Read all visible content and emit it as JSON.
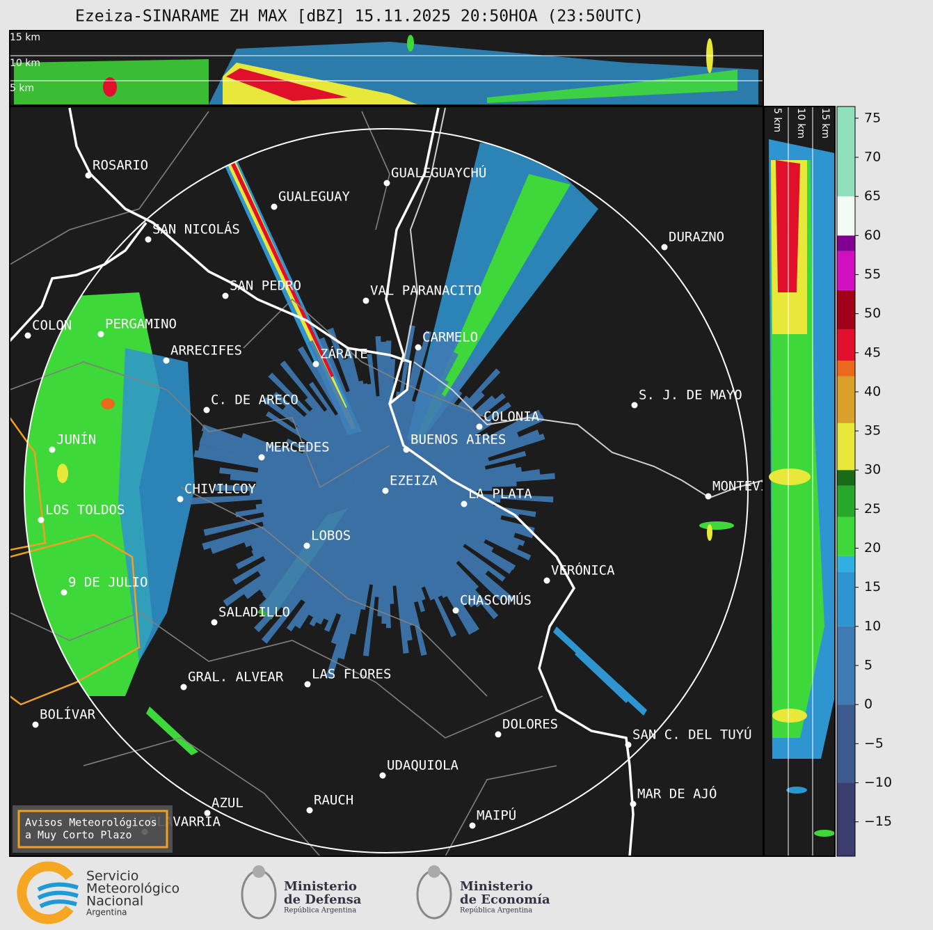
{
  "title": "Ezeiza-SINARAME ZH MAX [dBZ] 15.11.2025 20:50HOA (23:50UTC)",
  "top_panel": {
    "height_labels": [
      "15 km",
      "10 km",
      "5 km"
    ]
  },
  "side_panel": {
    "height_labels": [
      "5 km",
      "10 km",
      "15 km"
    ]
  },
  "cities": [
    "ROSARIO",
    "GUALEGUAYCHÚ",
    "GUALEGUAY",
    "SAN NICOLÁS",
    "DURAZNO",
    "SAN PEDRO",
    "VAL PARANACITO",
    "COLON",
    "PERGAMINO",
    "CARMELO",
    "ARRECIFES",
    "ZÁRATE",
    "S. J. DE MAYO",
    "C. DE ARECO",
    "COLONIA",
    "BUENOS AIRES",
    "JUNÍN",
    "MERCEDES",
    "EZEIZA",
    "CHIVILCOY",
    "LA PLATA",
    "MONTEVIDEO",
    "LOS TOLDOS",
    "LOBOS",
    "VERÓNICA",
    "9 DE JULIO",
    "CHASCOMÚS",
    "SALADILLO",
    "GRAL. ALVEAR",
    "LAS FLORES",
    "BOLÍVAR",
    "DOLORES",
    "SAN C. DEL TUYÚ",
    "UDAQUIOLA",
    "MAR DE AJÓ",
    "AZUL",
    "RAUCH",
    "OLAVARRÍA",
    "MAIPÚ"
  ],
  "warning_button": [
    "Avisos Meteorológicos",
    "a Muy Corto Plazo"
  ],
  "colorbar": {
    "lim": [
      -19.4,
      76.5
    ],
    "ticks": [
      75,
      70,
      65,
      60,
      55,
      50,
      45,
      40,
      35,
      30,
      25,
      20,
      15,
      10,
      5,
      0,
      {
        "value": -5,
        "label": "−5"
      },
      {
        "value": -10,
        "label": "−10"
      },
      {
        "value": -15,
        "label": "−15"
      }
    ],
    "bands": [
      {
        "from": -20,
        "to": -10,
        "color": "#3a3d6e"
      },
      {
        "from": -10,
        "to": 0,
        "color": "#3d5a8c"
      },
      {
        "from": 0,
        "to": 10,
        "color": "#3f7ab5"
      },
      {
        "from": 10,
        "to": 17,
        "color": "#2f95d0"
      },
      {
        "from": 17,
        "to": 19,
        "color": "#2fb0e0"
      },
      {
        "from": 19,
        "to": 24,
        "color": "#3fd83a"
      },
      {
        "from": 24,
        "to": 28,
        "color": "#27a82a"
      },
      {
        "from": 28,
        "to": 30,
        "color": "#186a18"
      },
      {
        "from": 30,
        "to": 36,
        "color": "#e8e83a"
      },
      {
        "from": 36,
        "to": 42,
        "color": "#d9a02a"
      },
      {
        "from": 42,
        "to": 44,
        "color": "#e86a1a"
      },
      {
        "from": 44,
        "to": 48,
        "color": "#e0102a"
      },
      {
        "from": 48,
        "to": 53,
        "color": "#a0001a"
      },
      {
        "from": 53,
        "to": 58,
        "color": "#d010c0"
      },
      {
        "from": 58,
        "to": 60,
        "color": "#800090"
      },
      {
        "from": 60,
        "to": 65,
        "color": "#f4fbf6"
      },
      {
        "from": 65,
        "to": 77,
        "color": "#8fe0bb"
      }
    ]
  },
  "logos": {
    "smn": [
      "Servicio",
      "Meteorológico",
      "Nacional",
      "Argentina"
    ],
    "defensa": [
      "Ministerio",
      "de Defensa",
      "República Argentina"
    ],
    "economia": [
      "Ministerio",
      "de Economía",
      "República Argentina"
    ]
  }
}
